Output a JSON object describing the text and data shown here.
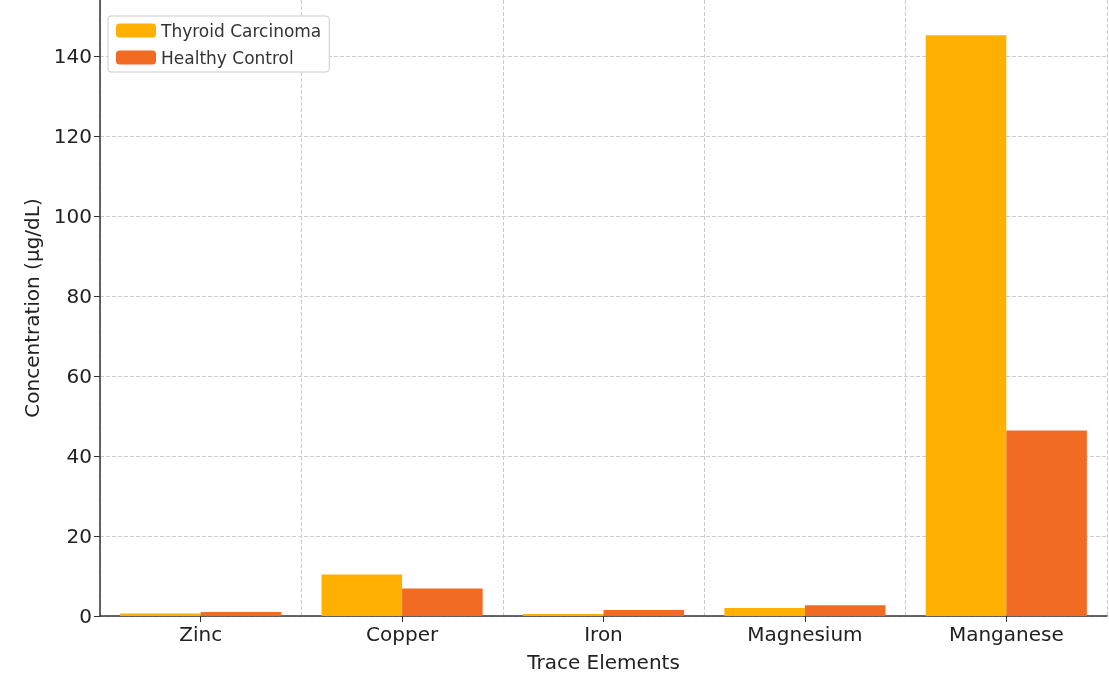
{
  "chart_data": {
    "type": "bar",
    "xlabel": "Trace Elements",
    "ylabel": "Concentration (µg/dL)",
    "categories": [
      "Zinc",
      "Copper",
      "Iron",
      "Magnesium",
      "Manganese"
    ],
    "series": [
      {
        "name": "Thyroid Carcinoma",
        "color": "#ffb000",
        "values": [
          0.6,
          10.4,
          0.5,
          2.0,
          145.2
        ]
      },
      {
        "name": "Healthy Control",
        "color": "#f26b22",
        "values": [
          1.0,
          6.9,
          1.5,
          2.7,
          46.4
        ]
      }
    ],
    "ylim": [
      0,
      154
    ],
    "yticks": [
      0,
      20,
      40,
      60,
      80,
      100,
      120,
      140
    ],
    "grid": true,
    "legend": "top left"
  }
}
